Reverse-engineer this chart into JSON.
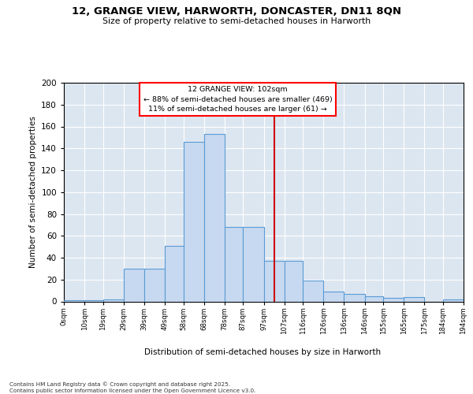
{
  "title1": "12, GRANGE VIEW, HARWORTH, DONCASTER, DN11 8QN",
  "title2": "Size of property relative to semi-detached houses in Harworth",
  "xlabel": "Distribution of semi-detached houses by size in Harworth",
  "ylabel": "Number of semi-detached properties",
  "footer": "Contains HM Land Registry data © Crown copyright and database right 2025.\nContains public sector information licensed under the Open Government Licence v3.0.",
  "annotation_title": "12 GRANGE VIEW: 102sqm",
  "annotation_line1": "← 88% of semi-detached houses are smaller (469)",
  "annotation_line2": "11% of semi-detached houses are larger (61) →",
  "property_value": 102,
  "bin_edges": [
    0,
    10,
    19,
    29,
    39,
    49,
    58,
    68,
    78,
    87,
    97,
    107,
    116,
    126,
    136,
    146,
    155,
    165,
    175,
    184,
    194
  ],
  "bar_heights": [
    1,
    1,
    2,
    30,
    30,
    51,
    146,
    153,
    68,
    68,
    37,
    37,
    19,
    9,
    7,
    5,
    3,
    4,
    0,
    2
  ],
  "bar_color": "#c6d9f0",
  "bar_edge_color": "#5b9bd5",
  "vline_color": "#cc0000",
  "bg_color": "#dce6f1",
  "ylim": [
    0,
    200
  ],
  "yticks": [
    0,
    20,
    40,
    60,
    80,
    100,
    120,
    140,
    160,
    180,
    200
  ],
  "tick_labels": [
    "0sqm",
    "10sqm",
    "19sqm",
    "29sqm",
    "39sqm",
    "49sqm",
    "58sqm",
    "68sqm",
    "78sqm",
    "87sqm",
    "97sqm",
    "107sqm",
    "116sqm",
    "126sqm",
    "136sqm",
    "146sqm",
    "155sqm",
    "165sqm",
    "175sqm",
    "184sqm",
    "194sqm"
  ]
}
